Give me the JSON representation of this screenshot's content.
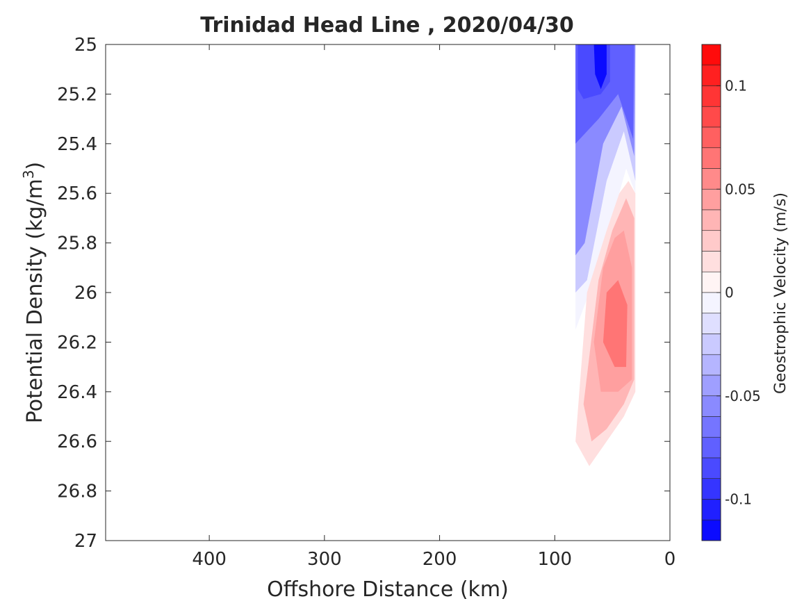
{
  "chart_data": {
    "type": "contour",
    "title": "Trinidad Head Line , 2020/04/30",
    "xlabel": "Offshore Distance (km)",
    "ylabel": "Potential Density (kg/m3)",
    "ylabel_main": "Potential Density (kg/m",
    "ylabel_sup": "3",
    "ylabel_close": ")",
    "xlim": [
      490,
      0
    ],
    "ylim": [
      25,
      27
    ],
    "x_reversed": true,
    "y_reversed": true,
    "x_ticks": [
      {
        "value": 400,
        "label": "400"
      },
      {
        "value": 300,
        "label": "300"
      },
      {
        "value": 200,
        "label": "200"
      },
      {
        "value": 100,
        "label": "100"
      },
      {
        "value": 0,
        "label": "0"
      }
    ],
    "y_ticks": [
      {
        "value": 25,
        "label": "25"
      },
      {
        "value": 25.2,
        "label": "25.2"
      },
      {
        "value": 25.4,
        "label": "25.4"
      },
      {
        "value": 25.6,
        "label": "25.6"
      },
      {
        "value": 25.8,
        "label": "25.8"
      },
      {
        "value": 26,
        "label": "26"
      },
      {
        "value": 26.2,
        "label": "26.2"
      },
      {
        "value": 26.4,
        "label": "26.4"
      },
      {
        "value": 26.6,
        "label": "26.6"
      },
      {
        "value": 26.8,
        "label": "26.8"
      },
      {
        "value": 27,
        "label": "27"
      }
    ],
    "colorbar": {
      "label": "Geostrophic Velocity (m/s)",
      "clim": [
        -0.12,
        0.12
      ],
      "levels": 24,
      "ticks": [
        {
          "value": 0.1,
          "label": "0.1"
        },
        {
          "value": 0.05,
          "label": "0.05"
        },
        {
          "value": 0,
          "label": "0"
        },
        {
          "value": -0.05,
          "label": "-0.05"
        },
        {
          "value": -0.1,
          "label": "-0.1"
        }
      ],
      "colormap": "blue-white-red"
    },
    "regions": [
      {
        "value": -0.01,
        "points": [
          [
            82,
            25
          ],
          [
            30,
            25
          ],
          [
            30,
            25.6
          ],
          [
            38,
            25.5
          ],
          [
            50,
            25.7
          ],
          [
            70,
            26.0
          ],
          [
            82,
            26.15
          ]
        ]
      },
      {
        "value": -0.03,
        "points": [
          [
            82,
            25
          ],
          [
            30,
            25
          ],
          [
            30,
            25.55
          ],
          [
            40,
            25.35
          ],
          [
            55,
            25.55
          ],
          [
            72,
            25.95
          ],
          [
            82,
            26.0
          ]
        ]
      },
      {
        "value": -0.05,
        "points": [
          [
            82,
            25
          ],
          [
            30,
            25
          ],
          [
            31,
            25.45
          ],
          [
            42,
            25.25
          ],
          [
            58,
            25.4
          ],
          [
            74,
            25.8
          ],
          [
            82,
            25.85
          ]
        ]
      },
      {
        "value": -0.07,
        "points": [
          [
            82,
            25
          ],
          [
            31,
            25
          ],
          [
            32,
            25.38
          ],
          [
            45,
            25.2
          ],
          [
            62,
            25.3
          ],
          [
            82,
            25.4
          ]
        ]
      },
      {
        "value": -0.09,
        "points": [
          [
            80,
            25
          ],
          [
            52,
            25
          ],
          [
            52,
            25.15
          ],
          [
            60,
            25.2
          ],
          [
            75,
            25.22
          ],
          [
            80,
            25.18
          ]
        ]
      },
      {
        "value": -0.11,
        "points": [
          [
            66,
            25
          ],
          [
            55,
            25
          ],
          [
            55,
            25.12
          ],
          [
            60,
            25.18
          ],
          [
            65,
            25.12
          ]
        ]
      },
      {
        "value": 0.01,
        "points": [
          [
            36,
            25.55
          ],
          [
            30,
            25.6
          ],
          [
            30,
            26.4
          ],
          [
            40,
            26.5
          ],
          [
            55,
            26.6
          ],
          [
            70,
            26.7
          ],
          [
            82,
            26.6
          ],
          [
            72,
            26.0
          ],
          [
            55,
            25.75
          ],
          [
            44,
            25.6
          ]
        ]
      },
      {
        "value": 0.03,
        "points": [
          [
            38,
            25.62
          ],
          [
            31,
            25.7
          ],
          [
            31,
            26.35
          ],
          [
            40,
            26.45
          ],
          [
            55,
            26.55
          ],
          [
            68,
            26.6
          ],
          [
            75,
            26.45
          ],
          [
            62,
            25.95
          ],
          [
            50,
            25.75
          ]
        ]
      },
      {
        "value": 0.05,
        "points": [
          [
            40,
            25.75
          ],
          [
            33,
            25.9
          ],
          [
            33,
            26.35
          ],
          [
            45,
            26.4
          ],
          [
            60,
            26.4
          ],
          [
            66,
            26.2
          ],
          [
            58,
            25.9
          ],
          [
            48,
            25.78
          ]
        ]
      },
      {
        "value": 0.06,
        "points": [
          [
            45,
            25.95
          ],
          [
            37,
            26.05
          ],
          [
            38,
            26.3
          ],
          [
            48,
            26.3
          ],
          [
            58,
            26.2
          ],
          [
            55,
            26.0
          ]
        ]
      }
    ]
  }
}
